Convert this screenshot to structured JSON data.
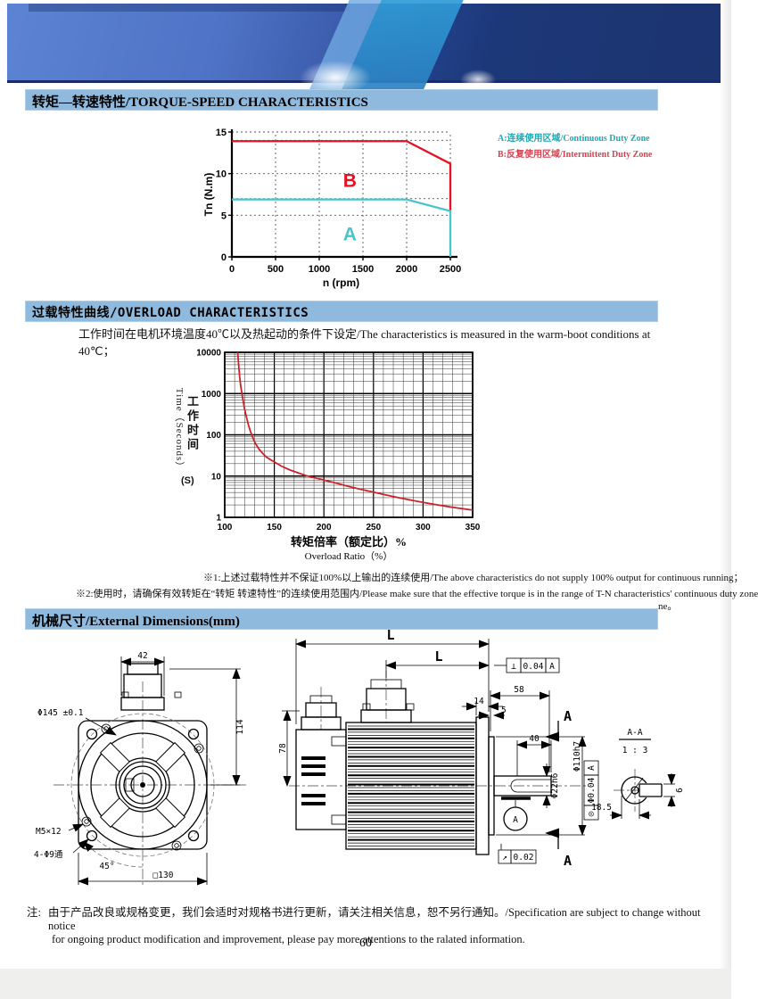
{
  "sections": {
    "torque": {
      "title": "转矩—转速特性/TORQUE-SPEED CHARACTERISTICS"
    },
    "overload": {
      "title": "过载特性曲线/OVERLOAD CHARACTERISTICS",
      "subtitle": "工作时间在电机环境温度40℃以及热起动的条件下设定/The characteristics is measured in the warm-boot conditions at 40℃；",
      "note1": "※1:上述过载特性并不保证100%以上输出的连续使用/The above characteristics do not supply 100% output for continuous running；",
      "note2": "※2:使用时，请确保有效转矩在“转矩 转速特性”的连续使用范围内/Please make sure that the effective torque is in the range of T-N characteristics' continuous duty zone",
      "note2_tail": "ne。"
    },
    "dimensions": {
      "title": "机械尺寸/External Dimensions(mm)"
    }
  },
  "legend": {
    "a": {
      "label": "A:连续使用区域/Continuous Duty Zone",
      "color": "#1fa9b4"
    },
    "b": {
      "label": "B:反复使用区域/Intermittent Duty Zone",
      "color": "#d8414f"
    }
  },
  "chart_data": [
    {
      "type": "line",
      "title": "Torque-Speed characteristics",
      "xlabel": "n (rpm)",
      "ylabel": "Tn (N.m)",
      "xlim": [
        0,
        2500
      ],
      "ylim": [
        0,
        15
      ],
      "xticks": [
        0,
        500,
        1000,
        1500,
        2000,
        2500
      ],
      "yticks": [
        0,
        5,
        10,
        15
      ],
      "grid_x": [
        500,
        1000,
        1500,
        2000,
        2500
      ],
      "grid_y": [
        5,
        7,
        10,
        14,
        15
      ],
      "series": [
        {
          "name": "B Intermittent duty limit",
          "color": "#e81123",
          "points": [
            [
              0,
              13.9
            ],
            [
              2000,
              13.9
            ],
            [
              2500,
              11.2
            ],
            [
              2500,
              5.6
            ]
          ]
        },
        {
          "name": "A Continuous duty limit",
          "color": "#49c3cd",
          "points": [
            [
              0,
              6.9
            ],
            [
              2000,
              6.9
            ],
            [
              2500,
              5.5
            ],
            [
              2500,
              0
            ]
          ]
        }
      ],
      "zone_labels": [
        {
          "text": "B",
          "x": 1350,
          "y": 8.4,
          "color": "#e81123"
        },
        {
          "text": "A",
          "x": 1350,
          "y": 2.0,
          "color": "#49c3cd"
        }
      ]
    },
    {
      "type": "line",
      "yscale": "log",
      "title": "Overload characteristics",
      "xlabel_cn": "转矩倍率（额定比）%",
      "xlabel_en": "Overload Ratio（%）",
      "ylabel_en": "Time（Seconds）",
      "ylabel_cn": "工作时间",
      "ylabel_unit": "(S)",
      "xlim": [
        100,
        350
      ],
      "ylim": [
        1,
        10000
      ],
      "xticks": [
        100,
        150,
        200,
        250,
        300,
        350
      ],
      "yticks": [
        1,
        10,
        100,
        1000,
        10000
      ],
      "x_minor_step": 10,
      "series": [
        {
          "name": "Overload time",
          "color": "#cc2229",
          "points": [
            [
              113,
              10000
            ],
            [
              114,
              5000
            ],
            [
              115,
              2600
            ],
            [
              116,
              1600
            ],
            [
              118,
              800
            ],
            [
              120,
              430
            ],
            [
              122,
              260
            ],
            [
              124,
              170
            ],
            [
              126,
              120
            ],
            [
              128,
              90
            ],
            [
              130,
              68
            ],
            [
              134,
              47
            ],
            [
              138,
              36
            ],
            [
              142,
              29
            ],
            [
              146,
              25
            ],
            [
              150,
              22
            ],
            [
              158,
              17
            ],
            [
              166,
              14
            ],
            [
              174,
              12
            ],
            [
              182,
              10.3
            ],
            [
              190,
              9.2
            ],
            [
              200,
              8
            ],
            [
              212,
              6.8
            ],
            [
              225,
              5.6
            ],
            [
              237,
              4.8
            ],
            [
              250,
              4.1
            ],
            [
              262,
              3.5
            ],
            [
              275,
              3.0
            ],
            [
              288,
              2.6
            ],
            [
              300,
              2.3
            ],
            [
              315,
              2.0
            ],
            [
              330,
              1.75
            ],
            [
              350,
              1.5
            ]
          ]
        }
      ]
    }
  ],
  "drawings": {
    "front": {
      "connector_width": "42",
      "bolt_circle": "Φ145 ±0.1",
      "height": "114",
      "tapped_holes": "M5×12",
      "through_holes": "4-Φ9通",
      "hole_angle": "45°",
      "square": "□130"
    },
    "side": {
      "overall_length": "L",
      "body_length": "L",
      "shaft_length": "58",
      "flange_thickness": "14",
      "spigot": "5",
      "key_length": "40",
      "shaft_diameter": "Φ22h6",
      "spigot_diameter": "Φ110h7",
      "encoder_height": "78",
      "perpendicularity": {
        "symbol": "⊥",
        "value": "0.04",
        "datum": "A"
      },
      "runout": {
        "symbol": "↗",
        "value": "0.02"
      },
      "concentricity": {
        "symbol": "◎",
        "value": "Φ0.04",
        "datum": "A"
      },
      "datum_label": "A",
      "section_label": "A"
    },
    "section": {
      "title": "A-A",
      "scale": "1 : 3",
      "width": "18.5",
      "key_width": "6"
    }
  },
  "footer": {
    "label": "注:",
    "note_line1": "由于产品改良或规格变更，我们会适时对规格书进行更新，请关注相关信息，恕不另行通知。/Specification are subject to change without notice",
    "note_line2": "for ongoing product modification and improvement, please pay more attentions to the ralated information."
  },
  "page": {
    "number": "60"
  }
}
